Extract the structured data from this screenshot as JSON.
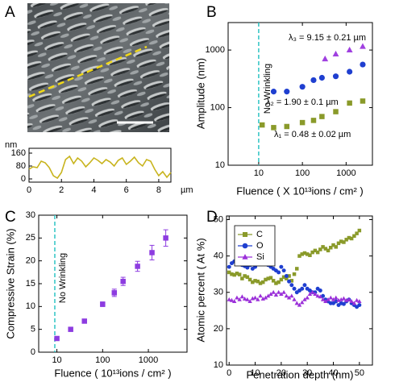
{
  "chart_data": [
    {
      "type": "line",
      "label": "A",
      "xlabel": "µm",
      "ylabel": "nm",
      "color": "#c8b41e",
      "x": [
        0,
        0.25,
        0.5,
        0.75,
        1,
        1.25,
        1.5,
        1.75,
        2,
        2.25,
        2.5,
        2.75,
        3,
        3.25,
        3.5,
        3.75,
        4,
        4.25,
        4.5,
        4.75,
        5,
        5.25,
        5.5,
        5.75,
        6,
        6.25,
        6.5,
        6.75,
        7,
        7.25,
        7.5,
        7.75,
        8,
        8.25,
        8.5,
        8.75
      ],
      "values": [
        60,
        75,
        70,
        110,
        100,
        70,
        20,
        5,
        40,
        120,
        140,
        95,
        130,
        110,
        75,
        100,
        130,
        115,
        95,
        120,
        105,
        80,
        115,
        130,
        90,
        110,
        135,
        100,
        80,
        120,
        110,
        60,
        20,
        45,
        10,
        40
      ],
      "xlim": [
        0,
        8.75
      ],
      "xticks": [
        0,
        2,
        4,
        6,
        8
      ],
      "ylim": [
        -20,
        190
      ],
      "yticks": [
        0,
        80,
        160
      ]
    },
    {
      "type": "scatter",
      "label": "B",
      "xlabel": "Fluence ( X 10¹³ions / cm² )",
      "ylabel": "Amplitude (nm)",
      "xlog": true,
      "ylog": true,
      "xlim": [
        2,
        4000
      ],
      "xticks": [
        10,
        100,
        1000
      ],
      "ylim": [
        10,
        3000
      ],
      "yticks": [
        10,
        100,
        1000
      ],
      "vline": 10,
      "vline_color": "#2ec4c4",
      "annotations": [
        "No Wrinkling",
        "λ₃ = 9.15 ± 0.21 µm",
        "λ₂ = 1.90 ± 0.1 µm",
        "λ₁ = 0.48 ± 0.02 µm"
      ],
      "series": [
        {
          "color": "#8a9a2a",
          "marker": "square",
          "x": [
            12,
            22,
            44,
            100,
            180,
            280,
            580,
            1200,
            2400
          ],
          "values": [
            50,
            45,
            47,
            55,
            60,
            70,
            85,
            120,
            130
          ]
        },
        {
          "color": "#1f3fd0",
          "marker": "circle",
          "x": [
            22,
            44,
            100,
            180,
            280,
            580,
            1200,
            2400
          ],
          "values": [
            190,
            190,
            230,
            300,
            330,
            350,
            420,
            560
          ]
        },
        {
          "color": "#a040e0",
          "marker": "triangle",
          "x": [
            330,
            580,
            1200,
            2400
          ],
          "values": [
            700,
            850,
            1000,
            1150
          ]
        }
      ]
    },
    {
      "type": "scatter",
      "label": "C",
      "xlabel": "Fluence (  10¹³ions / cm² )",
      "ylabel": "Compressive Strain (%)",
      "xlog": true,
      "xlim": [
        4,
        7000
      ],
      "xticks": [
        10,
        100,
        1000
      ],
      "ylim": [
        0,
        30
      ],
      "yticks": [
        0,
        5,
        10,
        15,
        20,
        25,
        30
      ],
      "vline": 9,
      "vline_color": "#2ec4c4",
      "annotations": [
        "No Wrinkling"
      ],
      "series": [
        {
          "color": "#8d3ce0",
          "marker": "square",
          "x": [
            10,
            20,
            40,
            100,
            180,
            280,
            580,
            1200,
            2400
          ],
          "values": [
            3,
            5,
            6.8,
            10.5,
            13,
            15.5,
            18.8,
            21.8,
            25
          ],
          "errors": [
            0.3,
            0.3,
            0.3,
            0.5,
            0.8,
            0.9,
            1.1,
            1.6,
            1.8
          ]
        }
      ]
    },
    {
      "type": "scatter",
      "label": "D",
      "xlabel": "Penetration depth (nm)",
      "ylabel": "Atomic percent ( At %)",
      "xlim": [
        -1,
        55
      ],
      "xticks": [
        0,
        10,
        20,
        30,
        40,
        50
      ],
      "ylim": [
        10,
        51
      ],
      "yticks": [
        10,
        20,
        30,
        40,
        50
      ],
      "legend": "top-left",
      "series": [
        {
          "name": "C",
          "color": "#8a9a2a",
          "marker": "square",
          "x": [
            0,
            1,
            2,
            3,
            4,
            5,
            6,
            7,
            8,
            9,
            10,
            11,
            12,
            13,
            14,
            15,
            16,
            17,
            18,
            19,
            20,
            21,
            22,
            23,
            24,
            25,
            26,
            27,
            28,
            29,
            30,
            31,
            32,
            33,
            34,
            35,
            36,
            37,
            38,
            39,
            40,
            41,
            42,
            43,
            44,
            45,
            46,
            47,
            48,
            49,
            50
          ],
          "values": [
            35.5,
            35,
            34.8,
            35.2,
            34.9,
            33.8,
            34.5,
            34.2,
            33.5,
            32.8,
            33.2,
            33,
            32.5,
            32.8,
            33.5,
            33.8,
            34,
            33.2,
            32.5,
            32.8,
            33.5,
            34.2,
            33.8,
            34.5,
            33.2,
            35,
            36.5,
            40,
            40.5,
            40.8,
            40.5,
            40.2,
            41,
            41.5,
            41,
            41.8,
            42.5,
            42,
            41.5,
            42.3,
            43,
            42.5,
            43.5,
            44,
            43.8,
            44.5,
            45,
            44.8,
            45.5,
            46.2,
            47
          ]
        },
        {
          "name": "O",
          "color": "#1f3fd0",
          "marker": "circle",
          "x": [
            0,
            1,
            2,
            3,
            4,
            5,
            6,
            7,
            8,
            9,
            10,
            11,
            12,
            13,
            14,
            15,
            16,
            17,
            18,
            19,
            20,
            21,
            22,
            23,
            24,
            25,
            26,
            27,
            28,
            29,
            30,
            31,
            32,
            33,
            34,
            35,
            36,
            37,
            38,
            39,
            40,
            41,
            42,
            43,
            44,
            45,
            46,
            47,
            48,
            49,
            50
          ],
          "values": [
            37,
            38,
            38.5,
            38.2,
            38.8,
            37.5,
            37.2,
            36.8,
            37.5,
            36.5,
            37,
            38.5,
            39,
            38.8,
            38,
            37.5,
            37,
            36.5,
            36,
            35.5,
            37,
            36,
            34.5,
            33,
            32,
            31,
            30,
            30.5,
            31,
            32,
            31,
            30.5,
            30,
            30,
            31,
            30.5,
            29,
            28,
            27.5,
            27,
            27,
            27.5,
            26.5,
            27,
            26.8,
            27.5,
            28,
            27,
            26.5,
            26,
            26.5
          ]
        },
        {
          "name": "Si",
          "color": "#9b30d9",
          "marker": "triangle",
          "x": [
            0,
            1,
            2,
            3,
            4,
            5,
            6,
            7,
            8,
            9,
            10,
            11,
            12,
            13,
            14,
            15,
            16,
            17,
            18,
            19,
            20,
            21,
            22,
            23,
            24,
            25,
            26,
            27,
            28,
            29,
            30,
            31,
            32,
            33,
            34,
            35,
            36,
            37,
            38,
            39,
            40,
            41,
            42,
            43,
            44,
            45,
            46,
            47,
            48,
            49,
            50
          ],
          "values": [
            28,
            27.8,
            27.5,
            28.5,
            28,
            28.8,
            28.2,
            28,
            27.5,
            28.3,
            28.5,
            28,
            29,
            28.2,
            28.5,
            29,
            29.5,
            30,
            29.3,
            30,
            29.5,
            30,
            29,
            28.5,
            29,
            28,
            27,
            26.5,
            27.2,
            28,
            28.5,
            29.5,
            30,
            29.5,
            29,
            28.8,
            28,
            27.5,
            28,
            28.5,
            28,
            28.5,
            27.8,
            28,
            28.3,
            27.8,
            28,
            27.5,
            27,
            27.8,
            27.5
          ]
        }
      ]
    }
  ]
}
